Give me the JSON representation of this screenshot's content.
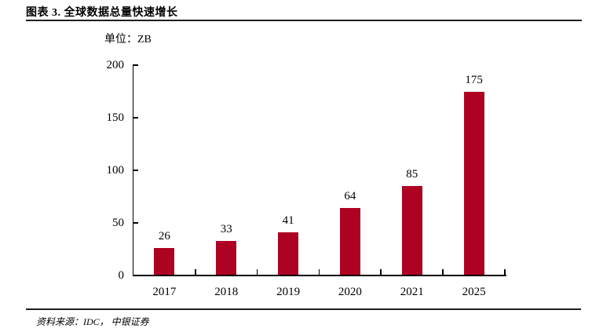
{
  "page": {
    "title": "图表 3. 全球数据总量快速增长",
    "source": "资料来源：IDC，  中银证券"
  },
  "chart_data": {
    "type": "bar",
    "title": "图表 3. 全球数据总量快速增长",
    "unit_label": "单位：ZB",
    "categories": [
      "2017",
      "2018",
      "2019",
      "2020",
      "2021",
      "2025"
    ],
    "values": [
      26,
      33,
      41,
      64,
      85,
      175
    ],
    "xlabel": "",
    "ylabel": "单位：ZB",
    "ylim": [
      0,
      200
    ],
    "yticks": [
      0,
      50,
      100,
      150,
      200
    ],
    "grid": false,
    "legend": "none",
    "bar_color": "#AE0222",
    "axis_color": "#000000",
    "text_color": "#000000"
  }
}
